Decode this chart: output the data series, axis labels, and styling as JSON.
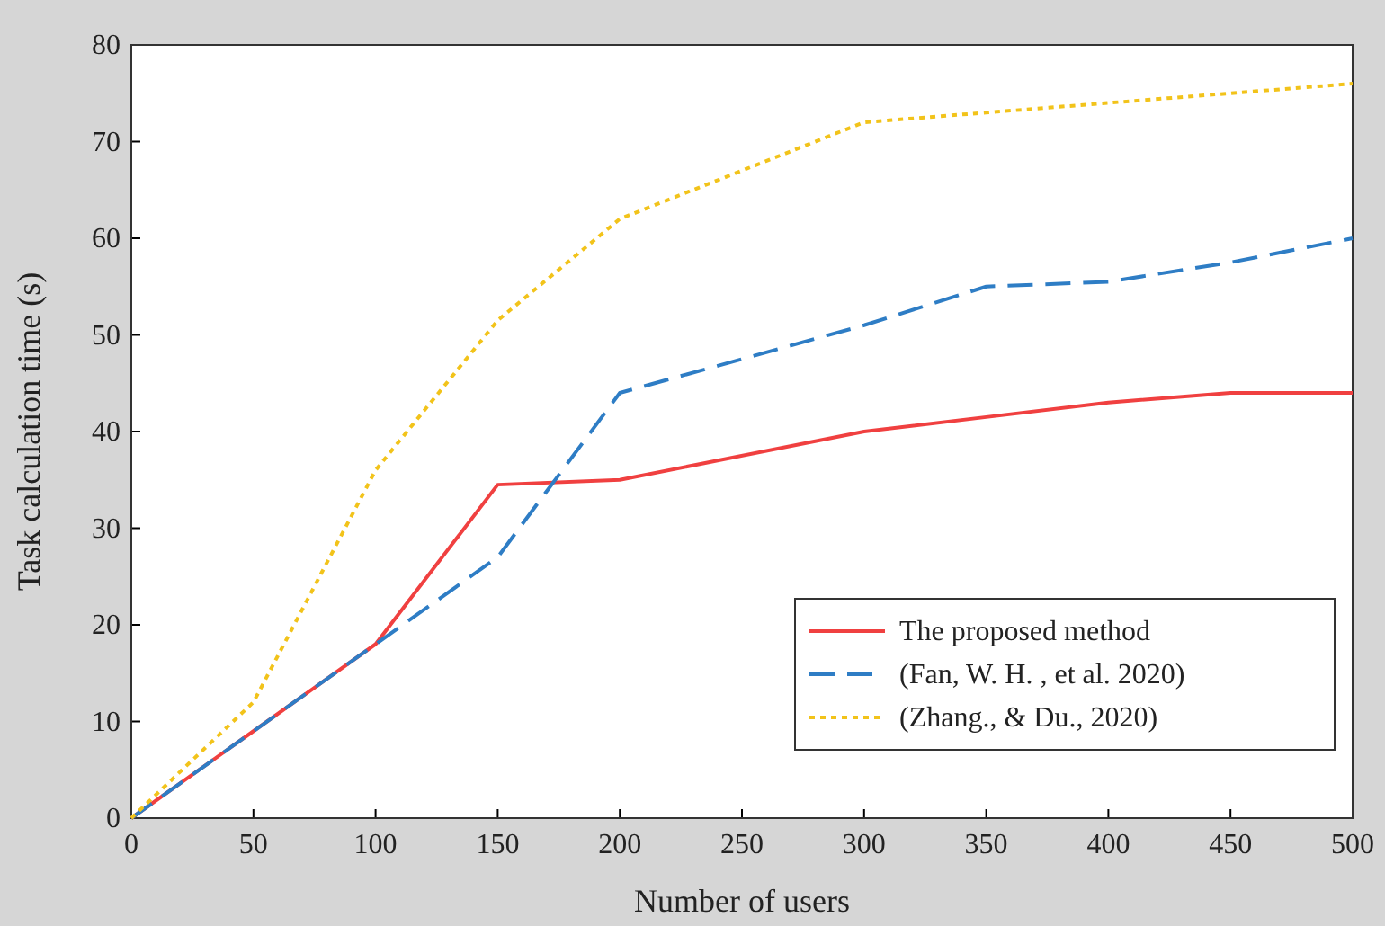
{
  "chart_data": {
    "type": "line",
    "xlabel": "Number of users",
    "ylabel": "Task calculation time (s)",
    "x": [
      0,
      50,
      100,
      150,
      200,
      300,
      350,
      400,
      450,
      500
    ],
    "series": [
      {
        "name": "The proposed method",
        "color": "#f04040",
        "line_style": "solid",
        "values": [
          0,
          9,
          18,
          34.5,
          35,
          40,
          41.5,
          43,
          44,
          44
        ]
      },
      {
        "name": "(Fan,  W. H. , et al. 2020)",
        "color": "#2e7dc5",
        "line_style": "dashed",
        "values": [
          0,
          9,
          18,
          27,
          44,
          51,
          55,
          55.5,
          57.5,
          60
        ]
      },
      {
        "name": " (Zhang., & Du., 2020)",
        "color": "#f2c31a",
        "line_style": "dotted",
        "values": [
          0,
          12,
          36,
          51.5,
          62,
          72,
          73,
          74,
          75,
          76
        ]
      }
    ],
    "xlim": [
      0,
      500
    ],
    "xticks": [
      0,
      50,
      100,
      150,
      200,
      250,
      300,
      350,
      400,
      450,
      500
    ],
    "ylim": [
      0,
      80
    ],
    "yticks": [
      0,
      10,
      20,
      30,
      40,
      50,
      60,
      70,
      80
    ],
    "grid": false,
    "legend": "bottom right"
  }
}
